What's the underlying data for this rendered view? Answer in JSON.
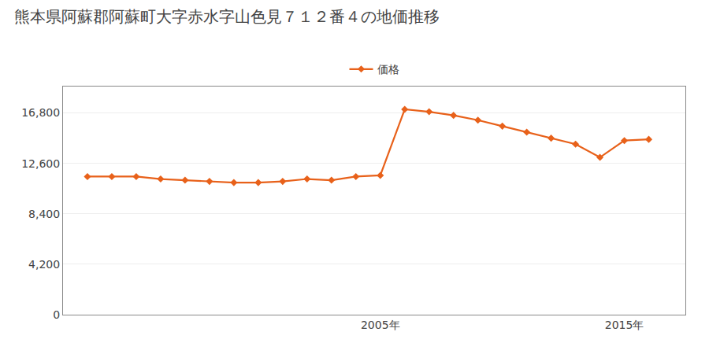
{
  "chart_data": {
    "type": "line",
    "title": "熊本県阿蘇郡阿蘇町大字赤水字山色見７１２番４の地価推移",
    "x": [
      1993,
      1994,
      1995,
      1996,
      1997,
      1998,
      1999,
      2000,
      2001,
      2002,
      2003,
      2004,
      2005,
      2006,
      2007,
      2008,
      2009,
      2010,
      2011,
      2012,
      2013,
      2014,
      2015,
      2016
    ],
    "series": [
      {
        "name": "価格",
        "color": "#E8611A",
        "marker": "diamond",
        "values": [
          11500,
          11500,
          11500,
          11300,
          11200,
          11100,
          11000,
          11000,
          11100,
          11300,
          11200,
          11500,
          11600,
          17100,
          16900,
          16600,
          16200,
          15700,
          15200,
          14700,
          14200,
          13100,
          14500,
          14600
        ]
      }
    ],
    "xlim": [
      1992,
      2017.5
    ],
    "xticks": [
      {
        "value": 2005,
        "label": "2005年"
      },
      {
        "value": 2015,
        "label": "2015年"
      }
    ],
    "ylim": [
      0,
      19000
    ],
    "yticks": [
      0,
      {
        "value": 4200,
        "label": "4,200"
      },
      {
        "value": 8400,
        "label": "8,400"
      },
      {
        "value": 12600,
        "label": "12,600"
      },
      {
        "value": 16800,
        "label": "16,800"
      }
    ],
    "grid": "y",
    "legend": "top"
  }
}
